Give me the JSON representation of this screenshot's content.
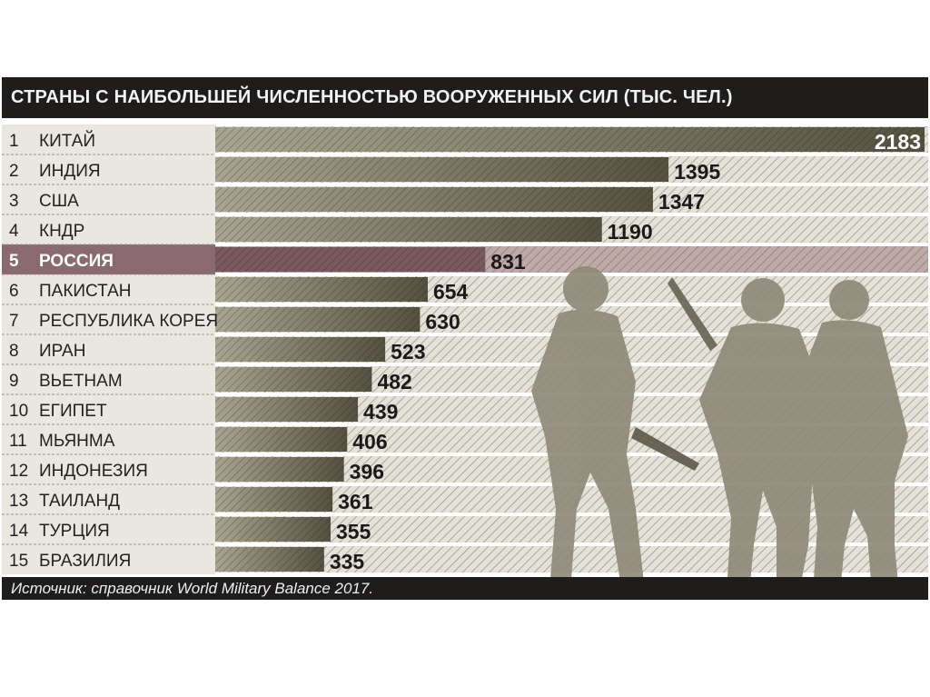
{
  "chart_data": {
    "type": "bar",
    "orientation": "horizontal",
    "title": "СТРАНЫ С НАИБОЛЬШЕЙ ЧИСЛЕННОСТЬЮ ВООРУЖЕННЫХ СИЛ (ТЫС. ЧЕЛ.)",
    "source": "Источник: справочник World Military Balance 2017.",
    "ranks": [
      "1",
      "2",
      "3",
      "4",
      "5",
      "6",
      "7",
      "8",
      "9",
      "10",
      "11",
      "12",
      "13",
      "14",
      "15"
    ],
    "categories": [
      "КИТАЙ",
      "ИНДИЯ",
      "США",
      "КНДР",
      "РОССИЯ",
      "ПАКИСТАН",
      "РЕСПУБЛИКА КОРЕЯ",
      "ИРАН",
      "ВЬЕТНАМ",
      "ЕГИПЕТ",
      "МЬЯНМА",
      "ИНДОНЕЗИЯ",
      "ТАИЛАНД",
      "ТУРЦИЯ",
      "БРАЗИЛИЯ"
    ],
    "values": [
      2183,
      1395,
      1347,
      1190,
      831,
      654,
      630,
      523,
      482,
      439,
      406,
      396,
      361,
      355,
      335
    ],
    "highlighted": "РОССИЯ",
    "xlim": [
      0,
      2183
    ],
    "grid": false,
    "colors": {
      "bar_light": "#a8a38e",
      "bar_dark": "#57533f",
      "highlight": "#8a6a70",
      "header": "#1f1c1c",
      "label_bg": "#e9e7e0"
    }
  }
}
